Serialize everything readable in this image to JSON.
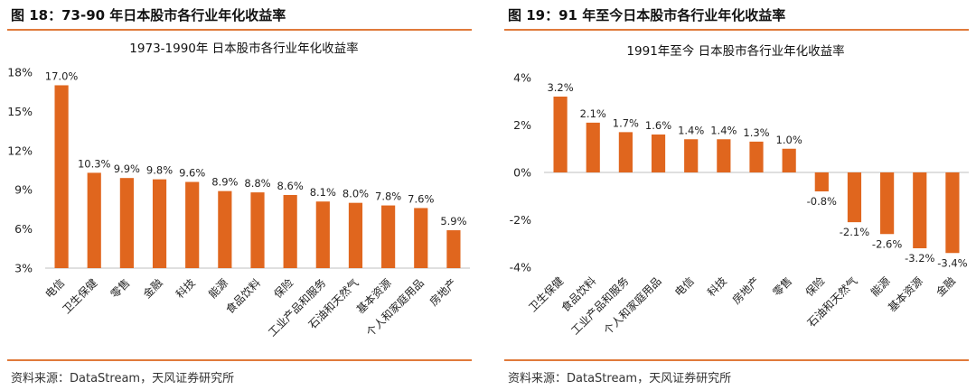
{
  "left": {
    "caption": "图 18：73-90 年日本股市各行业年化收益率",
    "source": "资料来源：DataStream，天风证券研究所"
  },
  "right": {
    "caption": "图 19：91 年至今日本股市各行业年化收益率",
    "source": "资料来源：DataStream，天风证券研究所"
  },
  "colors": {
    "bar": "#e0661e",
    "rule": "#e07a3a"
  },
  "chart_data": [
    {
      "type": "bar",
      "title": "1973-1990年 日本股市各行业年化收益率",
      "categories": [
        "电信",
        "卫生保健",
        "零售",
        "金融",
        "科技",
        "能源",
        "食品饮料",
        "保险",
        "工业产品和服务",
        "石油和天然气",
        "基本资源",
        "个人和家庭用品",
        "房地产"
      ],
      "values": [
        17.0,
        10.3,
        9.9,
        9.8,
        9.6,
        8.9,
        8.8,
        8.6,
        8.1,
        8.0,
        7.8,
        7.6,
        5.9
      ],
      "data_labels": [
        "17.0%",
        "10.3%",
        "9.9%",
        "9.8%",
        "9.6%",
        "8.9%",
        "8.8%",
        "8.6%",
        "8.1%",
        "8.0%",
        "7.8%",
        "7.6%",
        "5.9%"
      ],
      "yticks": [
        3,
        6,
        9,
        12,
        15,
        18
      ],
      "ytick_labels": [
        "3%",
        "6%",
        "9%",
        "12%",
        "15%",
        "18%"
      ],
      "ylim": [
        3,
        18
      ],
      "grid": false,
      "legend": "none"
    },
    {
      "type": "bar",
      "title": "1991年至今 日本股市各行业年化收益率",
      "categories": [
        "卫生保健",
        "食品饮料",
        "工业产品和服务",
        "个人和家庭用品",
        "电信",
        "科技",
        "房地产",
        "零售",
        "保险",
        "石油和天然气",
        "能源",
        "基本资源",
        "金融"
      ],
      "values": [
        3.2,
        2.1,
        1.7,
        1.6,
        1.4,
        1.4,
        1.3,
        1.0,
        -0.8,
        -2.1,
        -2.6,
        -3.2,
        -3.4
      ],
      "data_labels": [
        "3.2%",
        "2.1%",
        "1.7%",
        "1.6%",
        "1.4%",
        "1.4%",
        "1.3%",
        "1.0%",
        "-0.8%",
        "-2.1%",
        "-2.6%",
        "-3.2%",
        "-3.4%"
      ],
      "yticks": [
        -4,
        -2,
        0,
        2,
        4
      ],
      "ytick_labels": [
        "-4%",
        "-2%",
        "0%",
        "2%",
        "4%"
      ],
      "ylim": [
        -4,
        4
      ],
      "grid": false,
      "legend": "none"
    }
  ]
}
